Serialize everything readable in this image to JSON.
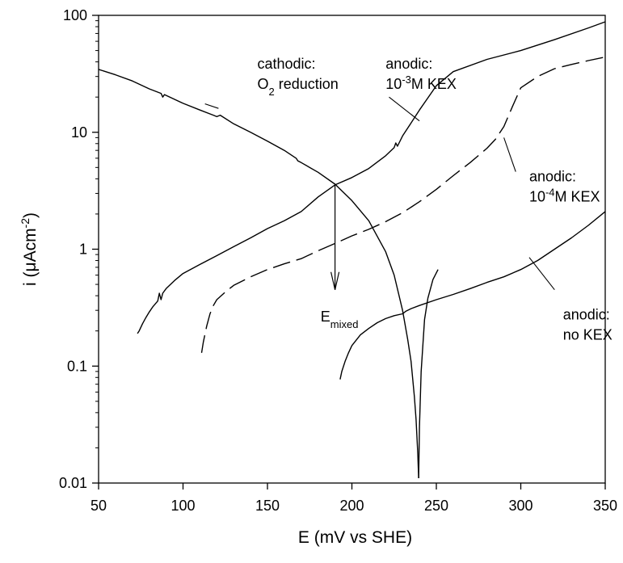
{
  "chart_data": {
    "type": "line",
    "xlabel": "E (mV vs SHE)",
    "ylabel": {
      "base": "i (μAcm",
      "sup": "-2",
      "close": ")"
    },
    "xlim": [
      50,
      350
    ],
    "ylim": [
      0.01,
      100
    ],
    "yscale": "log",
    "grid": false,
    "x_ticks": [
      50,
      100,
      150,
      200,
      250,
      300,
      350
    ],
    "x_tick_labels": [
      "50",
      "100",
      "150",
      "200",
      "250",
      "300",
      "350"
    ],
    "y_ticks": [
      0.01,
      0.1,
      1,
      10,
      100
    ],
    "y_tick_labels": [
      "0.01",
      "0.1",
      "1",
      "10",
      "100"
    ],
    "series": [
      {
        "id": "cathodic",
        "style": "solid",
        "x": [
          50,
          60,
          70,
          80,
          87,
          88,
          89,
          100,
          110,
          118,
          120,
          122,
          130,
          140,
          150,
          160,
          167,
          168,
          170,
          180,
          190,
          200,
          210,
          220,
          225,
          230,
          233,
          235,
          237,
          238,
          239,
          239.5
        ],
        "y": [
          34.5,
          31,
          27.5,
          23.5,
          21.5,
          20,
          21,
          17.7,
          15.5,
          14,
          13.6,
          14,
          11.8,
          10,
          8.4,
          7,
          6,
          5.7,
          5.5,
          4.55,
          3.6,
          2.6,
          1.75,
          0.95,
          0.6,
          0.3,
          0.17,
          0.11,
          0.055,
          0.035,
          0.018,
          0.011
        ]
      },
      {
        "id": "cathodic-branch",
        "style": "solid",
        "x": [
          239.5,
          240,
          241,
          243,
          245,
          248,
          251
        ],
        "y": [
          0.011,
          0.03,
          0.09,
          0.25,
          0.38,
          0.55,
          0.67
        ]
      },
      {
        "id": "anodic-1e-3M",
        "style": "solid",
        "x": [
          73,
          74,
          76,
          78,
          80,
          82,
          85,
          86,
          87,
          88,
          90,
          95,
          100,
          110,
          120,
          130,
          140,
          150,
          160,
          170,
          180,
          190,
          200,
          210,
          220,
          225,
          226,
          227,
          230,
          235,
          240,
          250,
          260,
          280,
          300,
          320,
          340,
          350
        ],
        "y": [
          0.19,
          0.2,
          0.23,
          0.26,
          0.29,
          0.32,
          0.36,
          0.42,
          0.37,
          0.42,
          0.46,
          0.54,
          0.62,
          0.74,
          0.88,
          1.05,
          1.25,
          1.5,
          1.75,
          2.1,
          2.8,
          3.55,
          4.1,
          4.9,
          6.3,
          7.4,
          8.1,
          7.6,
          9.3,
          12,
          15.5,
          25,
          33,
          42,
          50,
          62,
          78,
          88
        ]
      },
      {
        "id": "anodic-1e-4M",
        "style": "dashed",
        "x": [
          111,
          112,
          114,
          116,
          118,
          120,
          125,
          130,
          140,
          150,
          160,
          170,
          180,
          190,
          200,
          210,
          220,
          230,
          240,
          250,
          260,
          270,
          280,
          285,
          290,
          295,
          300,
          310,
          320,
          330,
          340,
          350
        ],
        "y": [
          0.13,
          0.16,
          0.22,
          0.28,
          0.33,
          0.37,
          0.43,
          0.49,
          0.58,
          0.67,
          0.75,
          0.83,
          0.97,
          1.12,
          1.3,
          1.48,
          1.72,
          2.05,
          2.55,
          3.25,
          4.25,
          5.5,
          7.3,
          8.7,
          11.2,
          16.5,
          24,
          30,
          35,
          38,
          41,
          44
        ]
      },
      {
        "id": "anodic-no-KEX",
        "style": "solid",
        "x": [
          193,
          194,
          196,
          198,
          200,
          205,
          210,
          215,
          220,
          225,
          230,
          232,
          235,
          240,
          250,
          260,
          270,
          280,
          290,
          300,
          310,
          320,
          330,
          340,
          350
        ],
        "y": [
          0.077,
          0.09,
          0.11,
          0.13,
          0.15,
          0.185,
          0.21,
          0.235,
          0.255,
          0.27,
          0.28,
          0.295,
          0.31,
          0.33,
          0.37,
          0.41,
          0.46,
          0.52,
          0.58,
          0.67,
          0.8,
          1.0,
          1.25,
          1.6,
          2.1
        ]
      }
    ],
    "annotations": [
      {
        "id": "cathodic",
        "lines": [
          "cathodic:",
          "O2 reduction"
        ],
        "lines_rich": [
          [
            "cathodic:"
          ],
          [
            "O",
            {
              "sub": "2"
            },
            " reduction"
          ]
        ],
        "text_x": 144,
        "text_y": 35,
        "align": "left",
        "pointer": [
          [
            113,
            17.5
          ],
          [
            121,
            16
          ]
        ]
      },
      {
        "id": "anodic-1e-3M",
        "lines_rich": [
          [
            "anodic:"
          ],
          [
            "10",
            {
              "sup": "-3"
            },
            "M KEX"
          ]
        ],
        "text_x": 220,
        "text_y": 35,
        "align": "left",
        "pointer": [
          [
            222,
            20
          ],
          [
            240,
            12.5
          ]
        ]
      },
      {
        "id": "anodic-1e-4M",
        "lines_rich": [
          [
            "anodic:"
          ],
          [
            "10",
            {
              "sup": "-4"
            },
            "M KEX"
          ]
        ],
        "text_x": 305,
        "text_y": 3.8,
        "align": "left",
        "pointer": [
          [
            290,
            9
          ],
          [
            297,
            4.6
          ]
        ]
      },
      {
        "id": "anodic-no-KEX",
        "lines_rich": [
          [
            "anodic:"
          ],
          [
            "no KEX"
          ]
        ],
        "text_x": 325,
        "text_y": 0.25,
        "align": "left",
        "pointer": [
          [
            305,
            0.85
          ],
          [
            320,
            0.45
          ]
        ]
      }
    ],
    "mixed_potential": {
      "label_rich": [
        "E",
        {
          "sub": "mixed"
        }
      ],
      "x": 190,
      "y_from": 3.55,
      "y_to": 0.45,
      "label_x": 192,
      "label_y": 0.24
    }
  }
}
